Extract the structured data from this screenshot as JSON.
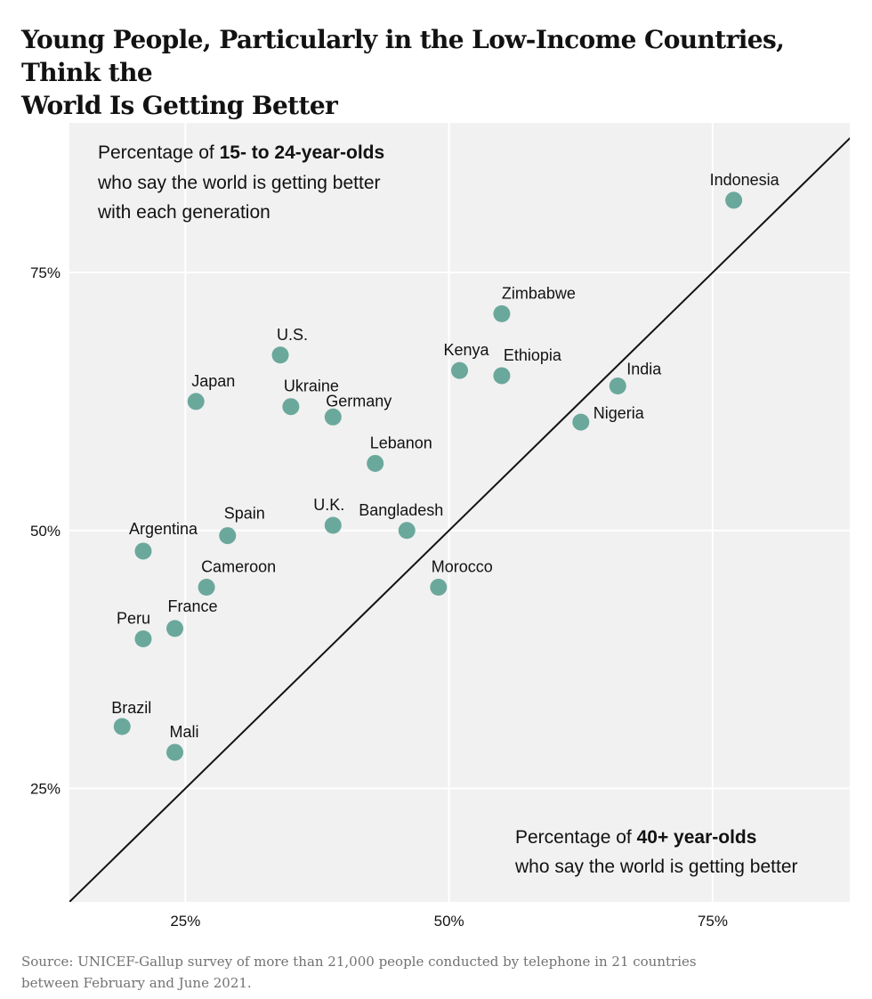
{
  "title_lines": [
    "Young People, Particularly in the Low-Income Countries, Think the",
    "World Is Getting Better"
  ],
  "source_lines": [
    "Source: UNICEF-Gallup survey of more than 21,000 people conducted by telephone in 21 countries",
    "between February and June 2021."
  ],
  "colors": {
    "plot_background": "#f1f1f1",
    "gridline": "#ffffff",
    "point": "#6ba89c",
    "diagonal": "#121212",
    "text": "#121212"
  },
  "chart_data": {
    "type": "scatter",
    "xlabel": {
      "plain": "Percentage of ",
      "bold": "40+ year-olds",
      "line2": "who say the world is getting better"
    },
    "ylabel": {
      "plain": "Percentage of ",
      "bold": "15- to 24-year-olds",
      "line2": "who say the world is getting better",
      "line3": "with each generation"
    },
    "xlim": [
      14,
      88
    ],
    "ylim": [
      14,
      89.5
    ],
    "xticks": [
      25,
      50,
      75
    ],
    "yticks": [
      25,
      50,
      75
    ],
    "xtick_labels": [
      "25%",
      "50%",
      "75%"
    ],
    "ytick_labels": [
      "25%",
      "50%",
      "75%"
    ],
    "grid": true,
    "reference_line": "y = x",
    "points": [
      {
        "label": "Indonesia",
        "x": 77,
        "y": 82
      },
      {
        "label": "Zimbabwe",
        "x": 55,
        "y": 71
      },
      {
        "label": "U.S.",
        "x": 34,
        "y": 67
      },
      {
        "label": "Kenya",
        "x": 51,
        "y": 65.5
      },
      {
        "label": "Ethiopia",
        "x": 55,
        "y": 65
      },
      {
        "label": "India",
        "x": 66,
        "y": 64
      },
      {
        "label": "Japan",
        "x": 26,
        "y": 62.5
      },
      {
        "label": "Ukraine",
        "x": 35,
        "y": 62
      },
      {
        "label": "Germany",
        "x": 39,
        "y": 61
      },
      {
        "label": "Nigeria",
        "x": 62.5,
        "y": 60.5
      },
      {
        "label": "Lebanon",
        "x": 43,
        "y": 56.5
      },
      {
        "label": "U.K.",
        "x": 39,
        "y": 50.5
      },
      {
        "label": "Bangladesh",
        "x": 46,
        "y": 50
      },
      {
        "label": "Spain",
        "x": 29,
        "y": 49.5
      },
      {
        "label": "Argentina",
        "x": 21,
        "y": 48
      },
      {
        "label": "Morocco",
        "x": 49,
        "y": 44.5
      },
      {
        "label": "Cameroon",
        "x": 27,
        "y": 44.5
      },
      {
        "label": "France",
        "x": 24,
        "y": 40.5
      },
      {
        "label": "Peru",
        "x": 21,
        "y": 39.5
      },
      {
        "label": "Brazil",
        "x": 19,
        "y": 31
      },
      {
        "label": "Mali",
        "x": 24,
        "y": 28.5
      }
    ]
  }
}
